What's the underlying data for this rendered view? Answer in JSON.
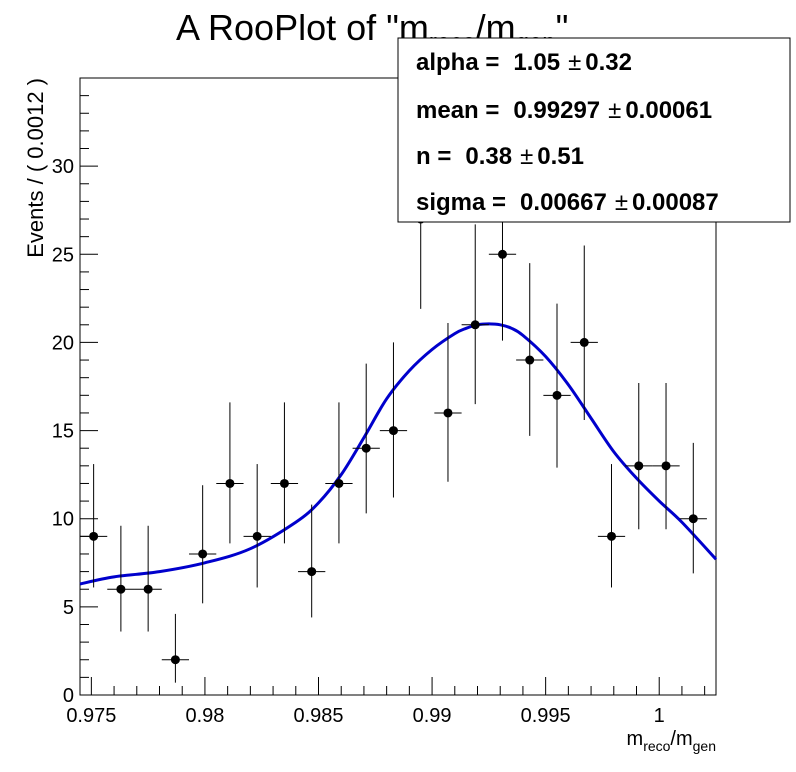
{
  "chart_data": {
    "type": "scatter",
    "title": {
      "prefix": "A RooPlot of \"m",
      "sub1": "reco",
      "mid": "/m",
      "sub2": "gen",
      "suffix": "\""
    },
    "ylabel": "Events / ( 0.0012 )",
    "xlabel": {
      "main1": "m",
      "sub1": "reco",
      "main2": "/m",
      "sub2": "gen"
    },
    "xlim": [
      0.9745,
      1.0025
    ],
    "ylim": [
      0,
      35
    ],
    "x_ticks": [
      {
        "value": 0.975,
        "label": "0.975"
      },
      {
        "value": 0.98,
        "label": "0.98"
      },
      {
        "value": 0.985,
        "label": "0.985"
      },
      {
        "value": 0.99,
        "label": "0.99"
      },
      {
        "value": 0.995,
        "label": "0.995"
      },
      {
        "value": 1.0,
        "label": "1"
      }
    ],
    "y_ticks": [
      {
        "value": 0,
        "label": "0"
      },
      {
        "value": 5,
        "label": "5"
      },
      {
        "value": 10,
        "label": "10"
      },
      {
        "value": 15,
        "label": "15"
      },
      {
        "value": 20,
        "label": "20"
      },
      {
        "value": 25,
        "label": "25"
      },
      {
        "value": 30,
        "label": "30"
      }
    ],
    "bin_width": 0.0012,
    "points": [
      {
        "x": 0.9751,
        "y": 9,
        "lo": 2.9,
        "hi": 4.1
      },
      {
        "x": 0.9763,
        "y": 6,
        "lo": 2.4,
        "hi": 3.6
      },
      {
        "x": 0.9775,
        "y": 6,
        "lo": 2.4,
        "hi": 3.6
      },
      {
        "x": 0.9787,
        "y": 2,
        "lo": 1.3,
        "hi": 2.6
      },
      {
        "x": 0.9799,
        "y": 8,
        "lo": 2.8,
        "hi": 3.9
      },
      {
        "x": 0.9811,
        "y": 12,
        "lo": 3.4,
        "hi": 4.6
      },
      {
        "x": 0.9823,
        "y": 9,
        "lo": 2.9,
        "hi": 4.1
      },
      {
        "x": 0.9835,
        "y": 12,
        "lo": 3.4,
        "hi": 4.6
      },
      {
        "x": 0.9847,
        "y": 7,
        "lo": 2.6,
        "hi": 3.8
      },
      {
        "x": 0.9859,
        "y": 12,
        "lo": 3.4,
        "hi": 4.6
      },
      {
        "x": 0.9871,
        "y": 14,
        "lo": 3.7,
        "hi": 4.8
      },
      {
        "x": 0.9883,
        "y": 15,
        "lo": 3.8,
        "hi": 5.0
      },
      {
        "x": 0.9895,
        "y": 27,
        "lo": 5.1,
        "hi": 6.3
      },
      {
        "x": 0.9907,
        "y": 16,
        "lo": 3.9,
        "hi": 5.1
      },
      {
        "x": 0.9919,
        "y": 21,
        "lo": 4.5,
        "hi": 5.7
      },
      {
        "x": 0.9931,
        "y": 25,
        "lo": 4.9,
        "hi": 6.1
      },
      {
        "x": 0.9943,
        "y": 19,
        "lo": 4.3,
        "hi": 5.5
      },
      {
        "x": 0.9955,
        "y": 17,
        "lo": 4.1,
        "hi": 5.2
      },
      {
        "x": 0.9967,
        "y": 20,
        "lo": 4.4,
        "hi": 5.5
      },
      {
        "x": 0.9979,
        "y": 9,
        "lo": 2.9,
        "hi": 4.1
      },
      {
        "x": 0.9991,
        "y": 13,
        "lo": 3.6,
        "hi": 4.7
      },
      {
        "x": 1.0003,
        "y": 13,
        "lo": 3.6,
        "hi": 4.7
      },
      {
        "x": 1.0015,
        "y": 10,
        "lo": 3.1,
        "hi": 4.3
      }
    ],
    "fit_curve": {
      "color": "#0000cc",
      "x": [
        0.9745,
        0.976,
        0.978,
        0.98,
        0.982,
        0.984,
        0.985,
        0.986,
        0.987,
        0.988,
        0.989,
        0.99,
        0.991,
        0.9915,
        0.992,
        0.9925,
        0.993,
        0.9935,
        0.994,
        0.995,
        0.996,
        0.997,
        0.998,
        0.999,
        1.0,
        1.001,
        1.0025
      ],
      "y": [
        6.3,
        6.7,
        7.0,
        7.5,
        8.3,
        9.8,
        10.9,
        12.5,
        14.6,
        16.8,
        18.4,
        19.6,
        20.5,
        20.8,
        21.0,
        21.05,
        21.0,
        20.8,
        20.4,
        19.2,
        17.6,
        15.7,
        13.8,
        12.3,
        11.0,
        9.8,
        7.7
      ]
    },
    "marker_color": "#000000",
    "parameters": [
      {
        "label": "alpha =",
        "value": "1.05",
        "pm": "±",
        "err": "0.32"
      },
      {
        "label": "mean =",
        "value": "0.99297",
        "pm": "±",
        "err": "0.00061"
      },
      {
        "label": "n =",
        "value": "0.38",
        "pm": "±",
        "err": "0.51"
      },
      {
        "label": "sigma =",
        "value": "0.00667",
        "pm": "±",
        "err": "0.00087"
      }
    ]
  }
}
